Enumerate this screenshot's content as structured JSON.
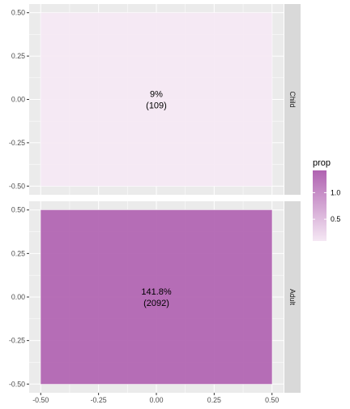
{
  "chart_data": {
    "type": "heatmap",
    "facet_layout": "rows",
    "panels": [
      {
        "facet": "Child",
        "tile": {
          "xmin": -0.5,
          "xmax": 0.5,
          "ymin": -0.5,
          "ymax": 0.5,
          "prop": 0.09
        },
        "label_lines": [
          "9%",
          "(109)"
        ]
      },
      {
        "facet": "Adult",
        "tile": {
          "xmin": -0.5,
          "xmax": 0.5,
          "ymin": -0.5,
          "ymax": 0.5,
          "prop": 1.418
        },
        "label_lines": [
          "141.8%",
          "(2092)"
        ]
      }
    ],
    "x_ticks": [
      -0.5,
      -0.25,
      0.0,
      0.25,
      0.5
    ],
    "x_tick_labels": [
      "-0.50",
      "-0.25",
      "0.00",
      "0.25",
      "0.50"
    ],
    "y_ticks": [
      -0.5,
      -0.25,
      0.0,
      0.25,
      0.5
    ],
    "y_tick_labels": [
      "-0.50",
      "-0.25",
      "0.00",
      "0.25",
      "0.50"
    ],
    "xlim": [
      -0.55,
      0.55
    ],
    "ylim": [
      -0.55,
      0.55
    ],
    "legend": {
      "title": "prop",
      "placement": "right",
      "range": [
        0.09,
        1.418
      ],
      "breaks": [
        0.5,
        1.0
      ],
      "break_labels": [
        "0.5",
        "1.0"
      ],
      "low_color": "#F5E8F4",
      "high_color": "#B062B1"
    },
    "grid": true,
    "colors": {
      "panel_bg": "#EBEBEB",
      "grid_major": "#FFFFFF",
      "strip_bg": "#D9D9D9",
      "tile_low": "#F5E8F4",
      "tile_high": "#B062B1"
    }
  }
}
